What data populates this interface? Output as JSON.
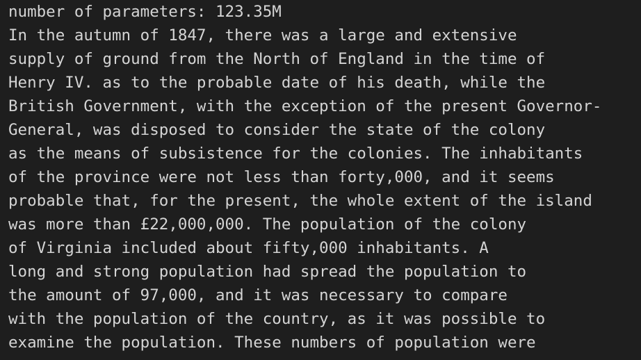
{
  "terminal": {
    "lines": [
      "number of parameters: 123.35M",
      "In the autumn of 1847, there was a large and extensive",
      "supply of ground from the North of England in the time of",
      "Henry IV. as to the probable date of his death, while the",
      "British Government, with the exception of the present Governor-",
      "General, was disposed to consider the state of the colony",
      "as the means of subsistence for the colonies. The inhabitants",
      "of the province were not less than forty,000, and it seems",
      "probable that, for the present, the whole extent of the island",
      "was more than £22,000,000. The population of the colony",
      "of Virginia included about fifty,000 inhabitants. A",
      "long and strong population had spread the population to",
      "the amount of 97,000, and it was necessary to compare",
      "with the population of the country, as it was possible to",
      "examine the population. These numbers of population were"
    ]
  }
}
